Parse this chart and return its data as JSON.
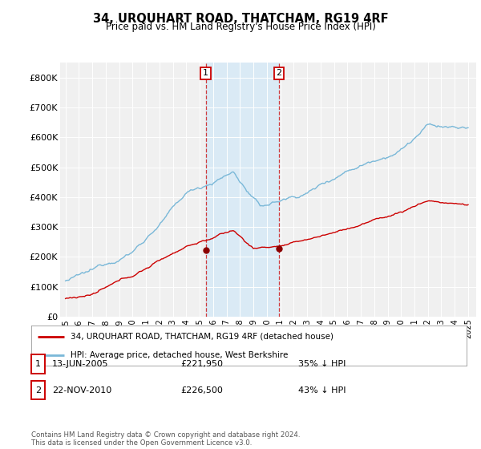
{
  "title": "34, URQUHART ROAD, THATCHAM, RG19 4RF",
  "subtitle": "Price paid vs. HM Land Registry's House Price Index (HPI)",
  "ylim": [
    0,
    850000
  ],
  "yticks": [
    0,
    100000,
    200000,
    300000,
    400000,
    500000,
    600000,
    700000,
    800000
  ],
  "ytick_labels": [
    "£0",
    "£100K",
    "£200K",
    "£300K",
    "£400K",
    "£500K",
    "£600K",
    "£700K",
    "£800K"
  ],
  "hpi_color": "#7ab8d8",
  "price_color": "#cc0000",
  "marker_color": "#8b0000",
  "vline_color": "#cc0000",
  "highlight_color": "#daeaf5",
  "transaction1_year": 2005.45,
  "transaction1_price": 221950,
  "transaction2_year": 2010.9,
  "transaction2_price": 226500,
  "legend_label1": "34, URQUHART ROAD, THATCHAM, RG19 4RF (detached house)",
  "legend_label2": "HPI: Average price, detached house, West Berkshire",
  "table_entries": [
    {
      "num": "1",
      "date": "13-JUN-2005",
      "price": "£221,950",
      "pct": "35% ↓ HPI"
    },
    {
      "num": "2",
      "date": "22-NOV-2010",
      "price": "£226,500",
      "pct": "43% ↓ HPI"
    }
  ],
  "footer": "Contains HM Land Registry data © Crown copyright and database right 2024.\nThis data is licensed under the Open Government Licence v3.0.",
  "background_color": "#ffffff",
  "plot_bg_color": "#f0f0f0"
}
